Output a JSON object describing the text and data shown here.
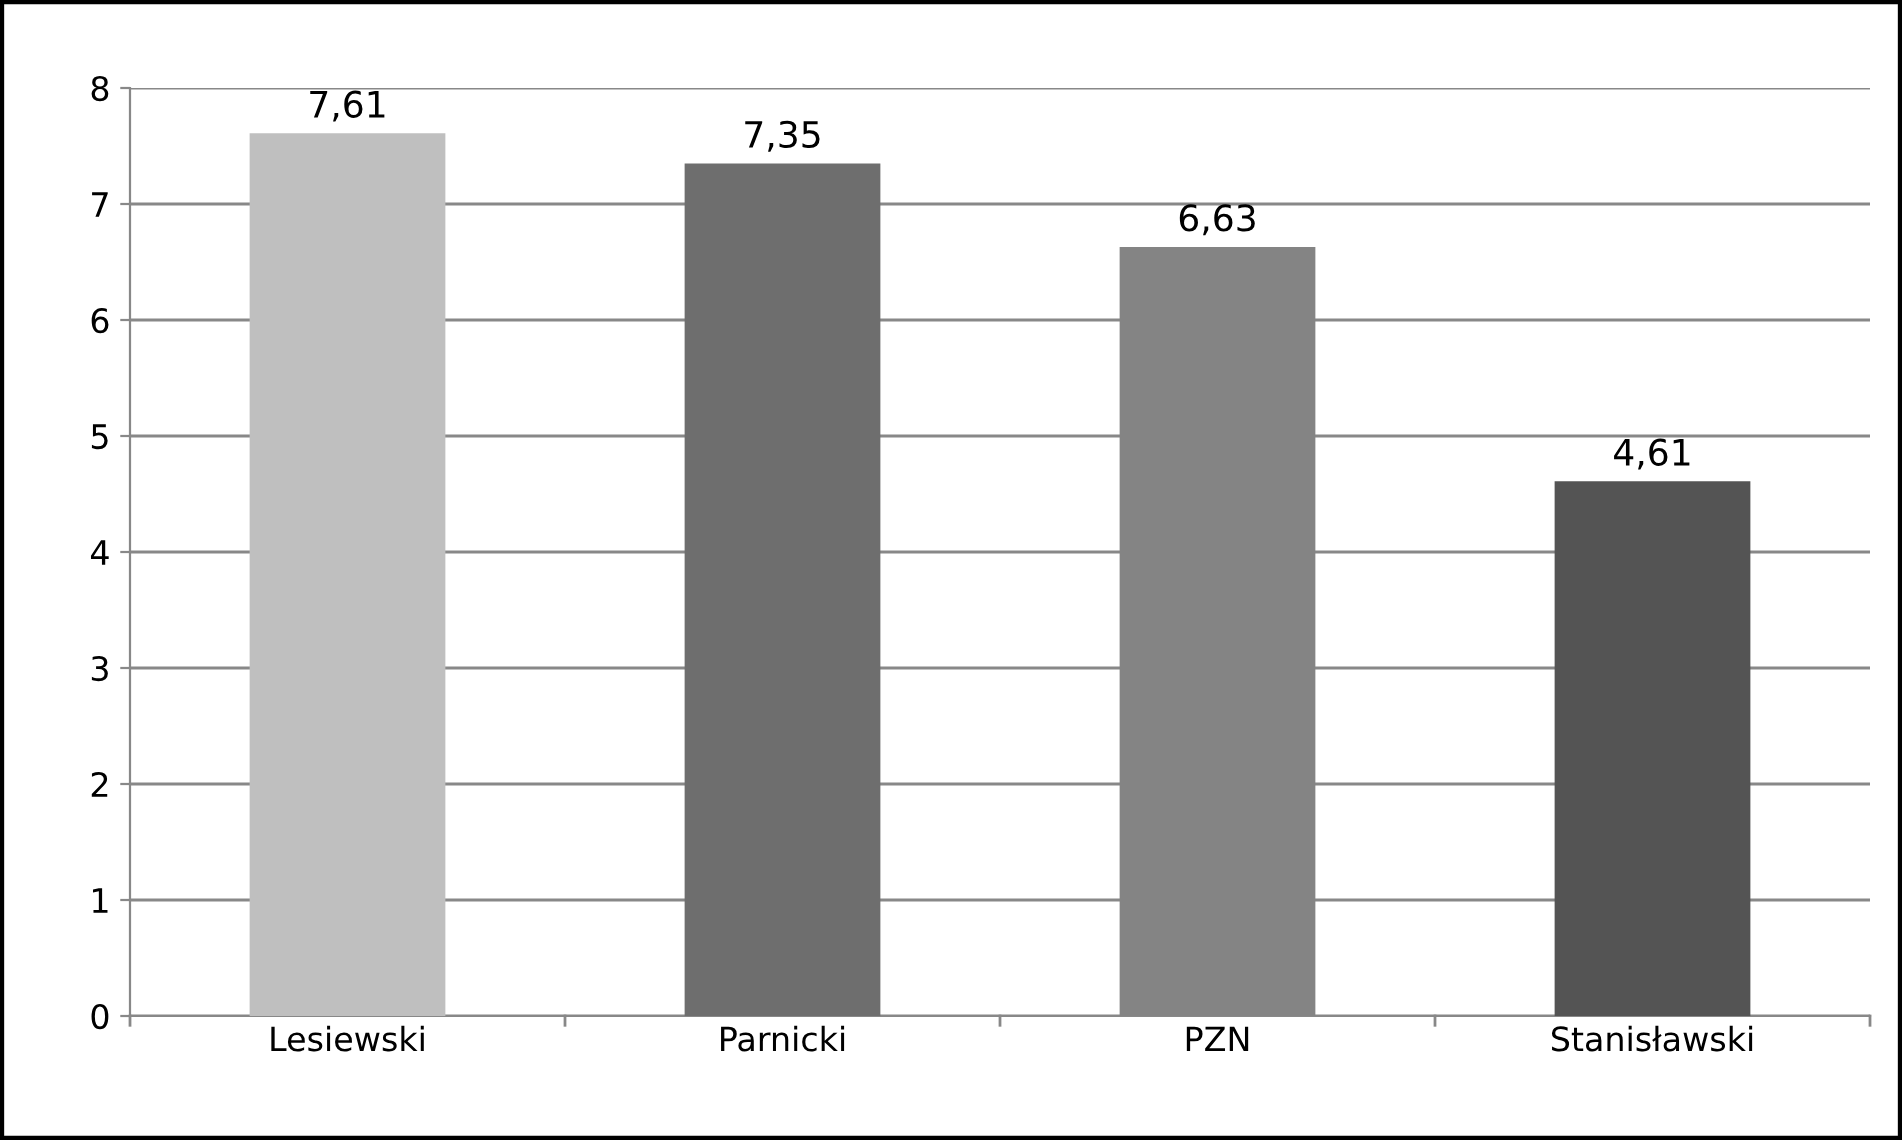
{
  "chart_data": {
    "type": "bar",
    "categories": [
      "Lesiewski",
      "Parnicki",
      "PZN",
      "Stanisławski"
    ],
    "values": [
      7.61,
      7.35,
      6.63,
      4.61
    ],
    "colors": [
      "#bfbfbf",
      "#6e6e6e",
      "#848484",
      "#545454"
    ],
    "value_labels": [
      "7,61",
      "7,35",
      "6,63",
      "4,61"
    ],
    "ylim": [
      0,
      8
    ],
    "yticks": [
      0,
      1,
      2,
      3,
      4,
      5,
      6,
      7,
      8
    ],
    "grid": "y",
    "legend": false
  }
}
